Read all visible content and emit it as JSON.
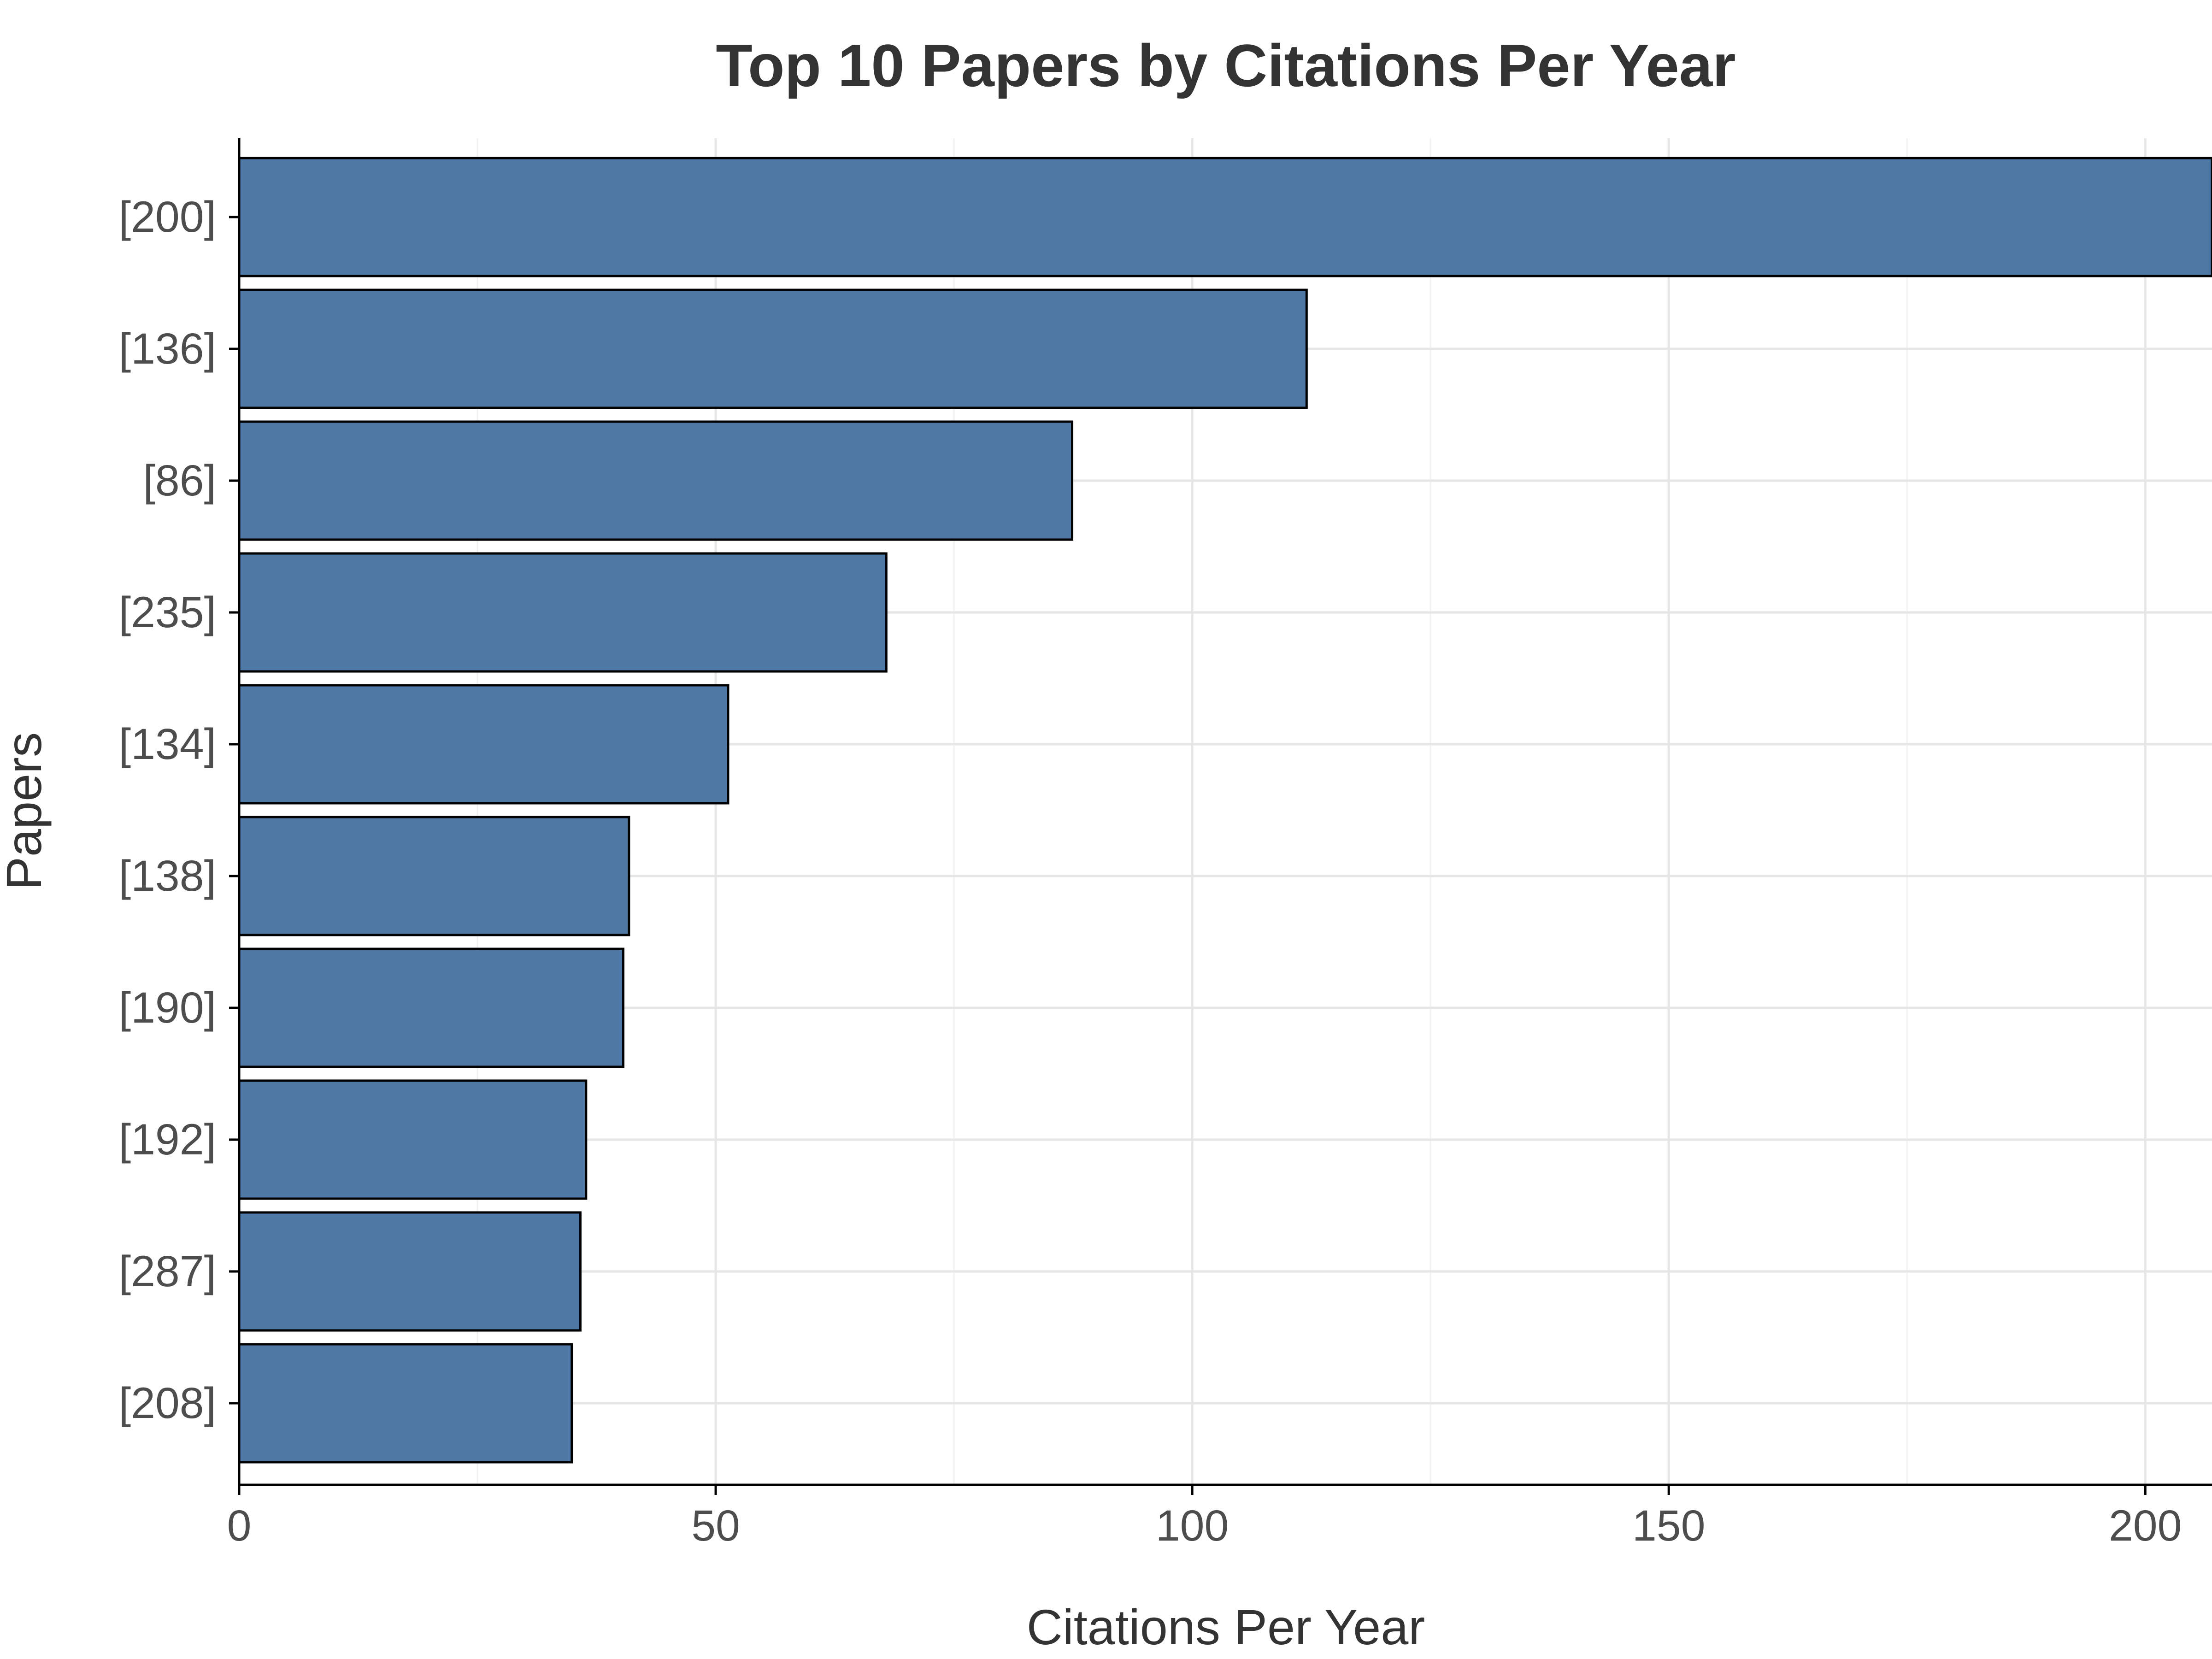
{
  "chart_data": {
    "type": "bar",
    "orientation": "horizontal",
    "title": "Top 10 Papers by Citations Per Year",
    "xlabel": "Citations Per Year",
    "ylabel": "Papers",
    "categories": [
      "[200]",
      "[136]",
      "[86]",
      "[235]",
      "[134]",
      "[138]",
      "[190]",
      "[192]",
      "[287]",
      "[208]"
    ],
    "values": [
      207,
      112,
      87.4,
      67.9,
      51.3,
      40.9,
      40.3,
      36.4,
      35.8,
      34.9
    ],
    "xlim": [
      0,
      207
    ],
    "xticks": [
      0,
      50,
      100,
      150,
      200
    ],
    "xtick_labels": [
      "0",
      "50",
      "100",
      "150",
      "200"
    ],
    "bar_color": "#4e79a7",
    "grid": true,
    "legend": "none"
  }
}
